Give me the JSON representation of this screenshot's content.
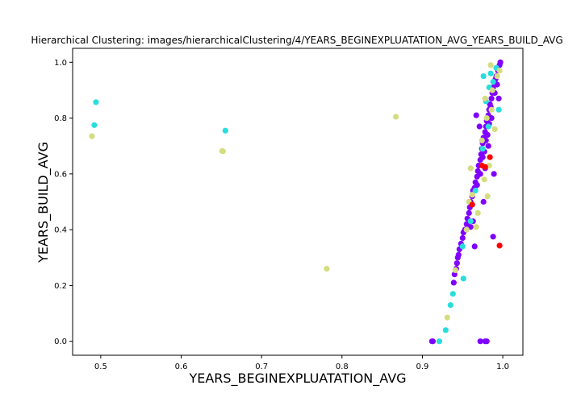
{
  "chart_data": {
    "type": "scatter",
    "title": "Hierarchical Clustering: images/hierarchicalClustering/4/YEARS_BEGINEXPLUATATION_AVG_YEARS_BUILD_AVG",
    "xlabel": "YEARS_BEGINEXPLUATATION_AVG",
    "ylabel": "YEARS_BUILD_AVG",
    "xlim": [
      0.465,
      1.025
    ],
    "ylim": [
      -0.05,
      1.05
    ],
    "xticks": [
      0.5,
      0.6,
      0.7,
      0.8,
      0.9,
      1.0
    ],
    "yticks": [
      0.0,
      0.2,
      0.4,
      0.6,
      0.8,
      1.0
    ],
    "xtick_labels": [
      "0.5",
      "0.6",
      "0.7",
      "0.8",
      "0.9",
      "1.0"
    ],
    "ytick_labels": [
      "0.0",
      "0.2",
      "0.4",
      "0.6",
      "0.8",
      "1.0"
    ],
    "grid": false,
    "legend": "none",
    "series": [
      {
        "color": "#8000ff",
        "points": [
          [
            0.912,
            0.0
          ],
          [
            0.913,
            0.0
          ],
          [
            0.972,
            0.0
          ],
          [
            0.978,
            0.0
          ],
          [
            0.98,
            0.0
          ],
          [
            0.939,
            0.21
          ],
          [
            0.94,
            0.24
          ],
          [
            0.942,
            0.26
          ],
          [
            0.943,
            0.28
          ],
          [
            0.944,
            0.3
          ],
          [
            0.945,
            0.31
          ],
          [
            0.946,
            0.33
          ],
          [
            0.948,
            0.35
          ],
          [
            0.95,
            0.37
          ],
          [
            0.951,
            0.39
          ],
          [
            0.953,
            0.4
          ],
          [
            0.955,
            0.42
          ],
          [
            0.956,
            0.44
          ],
          [
            0.958,
            0.46
          ],
          [
            0.959,
            0.48
          ],
          [
            0.96,
            0.5
          ],
          [
            0.962,
            0.52
          ],
          [
            0.963,
            0.54
          ],
          [
            0.965,
            0.55
          ],
          [
            0.966,
            0.57
          ],
          [
            0.968,
            0.59
          ],
          [
            0.969,
            0.61
          ],
          [
            0.97,
            0.63
          ],
          [
            0.972,
            0.65
          ],
          [
            0.973,
            0.67
          ],
          [
            0.974,
            0.69
          ],
          [
            0.975,
            0.71
          ],
          [
            0.976,
            0.73
          ],
          [
            0.978,
            0.75
          ],
          [
            0.979,
            0.77
          ],
          [
            0.98,
            0.79
          ],
          [
            0.982,
            0.81
          ],
          [
            0.983,
            0.83
          ],
          [
            0.984,
            0.85
          ],
          [
            0.986,
            0.87
          ],
          [
            0.987,
            0.89
          ],
          [
            0.988,
            0.91
          ],
          [
            0.99,
            0.93
          ],
          [
            0.992,
            0.95
          ],
          [
            0.994,
            0.97
          ],
          [
            0.996,
            0.99
          ],
          [
            0.997,
            1.0
          ],
          [
            0.965,
            0.34
          ],
          [
            0.988,
            0.375
          ],
          [
            0.976,
            0.5
          ],
          [
            0.989,
            0.6
          ],
          [
            0.967,
            0.81
          ],
          [
            0.995,
            0.87
          ],
          [
            0.971,
            0.77
          ],
          [
            0.985,
            0.84
          ],
          [
            0.978,
            0.62
          ],
          [
            0.982,
            0.7
          ],
          [
            0.993,
            0.92
          ],
          [
            0.96,
            0.41
          ],
          [
            0.963,
            0.43
          ],
          [
            0.975,
            0.66
          ],
          [
            0.977,
            0.68
          ],
          [
            0.981,
            0.74
          ],
          [
            0.986,
            0.8
          ],
          [
            0.99,
            0.89
          ],
          [
            0.972,
            0.6
          ],
          [
            0.968,
            0.56
          ],
          [
            0.983,
            0.78
          ],
          [
            0.979,
            0.72
          ],
          [
            0.991,
            0.94
          ]
        ]
      },
      {
        "color": "#2adddd",
        "points": [
          [
            0.494,
            0.857
          ],
          [
            0.492,
            0.775
          ],
          [
            0.655,
            0.755
          ],
          [
            0.921,
            0.0
          ],
          [
            0.929,
            0.04
          ],
          [
            0.935,
            0.13
          ],
          [
            0.938,
            0.17
          ],
          [
            0.951,
            0.225
          ],
          [
            0.95,
            0.34
          ],
          [
            0.96,
            0.43
          ],
          [
            0.966,
            0.54
          ],
          [
            0.975,
            0.69
          ],
          [
            0.982,
            0.77
          ],
          [
            0.979,
            0.86
          ],
          [
            0.976,
            0.95
          ],
          [
            0.988,
            0.93
          ],
          [
            0.992,
            0.98
          ],
          [
            0.985,
            0.96
          ],
          [
            0.995,
            0.83
          ],
          [
            0.983,
            0.91
          ]
        ]
      },
      {
        "color": "#d4dd80",
        "points": [
          [
            0.489,
            0.735
          ],
          [
            0.651,
            0.682
          ],
          [
            0.652,
            0.681
          ],
          [
            0.781,
            0.26
          ],
          [
            0.867,
            0.805
          ],
          [
            0.931,
            0.085
          ],
          [
            0.941,
            0.255
          ],
          [
            0.955,
            0.4
          ],
          [
            0.958,
            0.5
          ],
          [
            0.96,
            0.62
          ],
          [
            0.962,
            0.525
          ],
          [
            0.969,
            0.46
          ],
          [
            0.967,
            0.41
          ],
          [
            0.977,
            0.58
          ],
          [
            0.981,
            0.52
          ],
          [
            0.983,
            0.63
          ],
          [
            0.985,
            0.99
          ],
          [
            0.993,
            0.95
          ],
          [
            0.987,
            0.9
          ],
          [
            0.978,
            0.87
          ],
          [
            0.98,
            0.8
          ],
          [
            0.986,
            0.83
          ],
          [
            0.99,
            0.76
          ],
          [
            0.974,
            0.72
          ],
          [
            0.996,
            0.97
          ]
        ]
      },
      {
        "color": "#ff0000",
        "points": [
          [
            0.996,
            0.343
          ],
          [
            0.962,
            0.49
          ],
          [
            0.974,
            0.63
          ],
          [
            0.978,
            0.625
          ],
          [
            0.984,
            0.66
          ]
        ]
      }
    ]
  }
}
